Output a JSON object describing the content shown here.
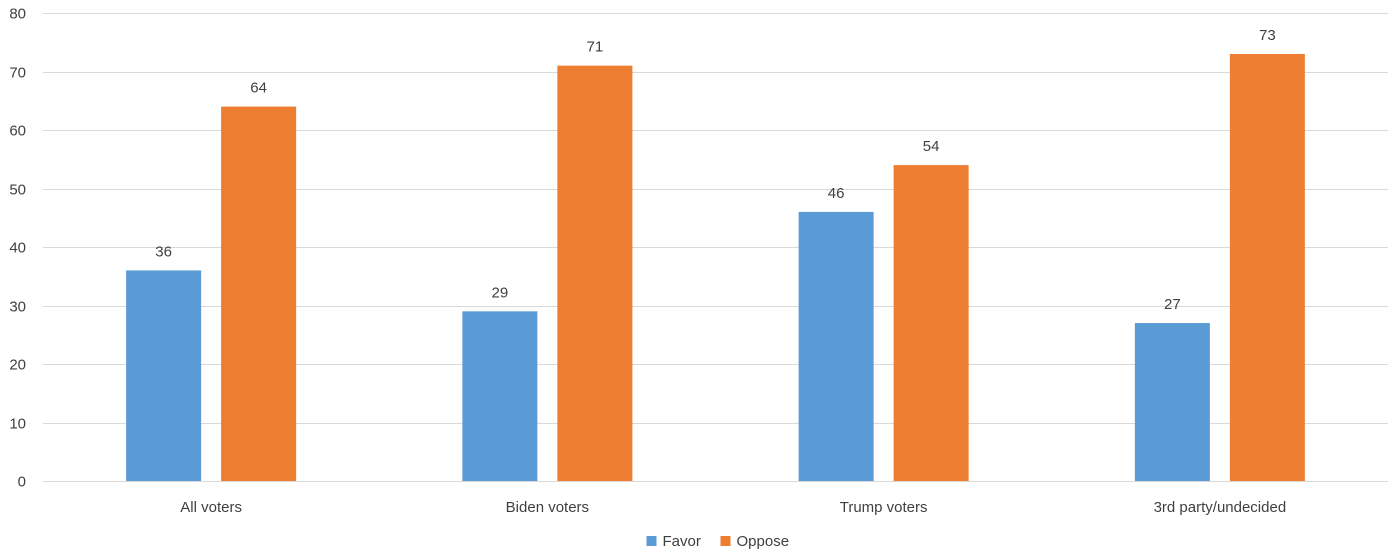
{
  "chart_data": {
    "type": "bar",
    "title": "",
    "xlabel": "",
    "ylabel": "",
    "categories": [
      "All voters",
      "Biden voters",
      "Trump voters",
      "3rd party/undecided"
    ],
    "series": [
      {
        "name": "Favor",
        "values": [
          36,
          29,
          46,
          27
        ],
        "color": "#5B9BD5"
      },
      {
        "name": "Oppose",
        "values": [
          64,
          71,
          54,
          73
        ],
        "color": "#ED7D31"
      }
    ],
    "ylim": [
      0,
      80
    ],
    "yticks": [
      0,
      10,
      20,
      30,
      40,
      50,
      60,
      70,
      80
    ],
    "grid": true,
    "grid_color": "#d9d9d9",
    "data_labels": true,
    "legend_position": "bottom-center"
  }
}
